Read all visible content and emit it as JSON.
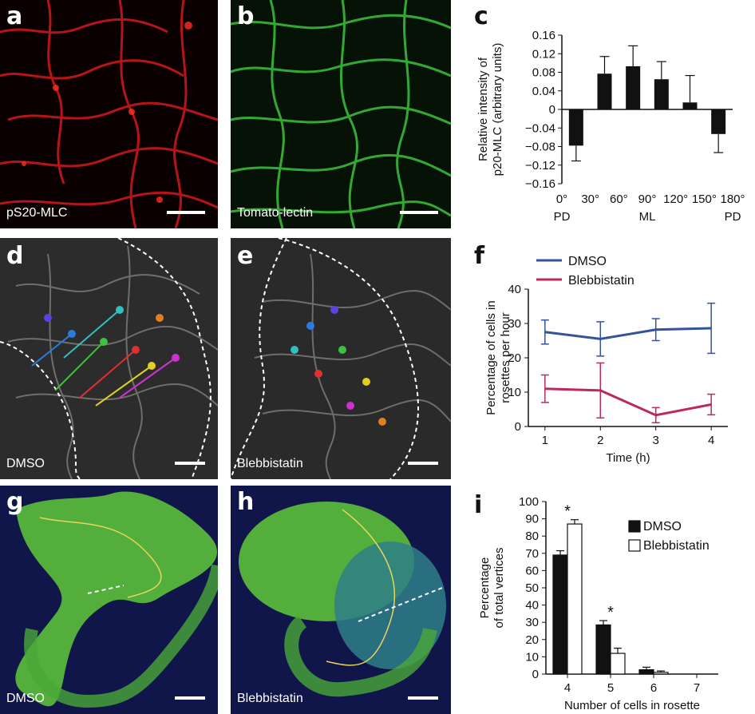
{
  "panels": {
    "a": {
      "label": "a",
      "caption": "pS20-MLC",
      "color": "#e8201c"
    },
    "b": {
      "label": "b",
      "caption": "Tomato-lectin",
      "color": "#36c236"
    },
    "c": {
      "label": "c"
    },
    "d": {
      "label": "d",
      "caption": "DMSO"
    },
    "e": {
      "label": "e",
      "caption": "Blebbistatin"
    },
    "f": {
      "label": "f"
    },
    "g": {
      "label": "g",
      "caption": "DMSO"
    },
    "h": {
      "label": "h",
      "caption": "Blebbistatin"
    },
    "i": {
      "label": "i"
    }
  },
  "chart_data": [
    {
      "id": "c",
      "type": "bar",
      "ylabel_lines": [
        "Relative intensity of",
        "p20-MLC (arbitrary units)"
      ],
      "ylim": [
        -0.16,
        0.16
      ],
      "yticks": [
        "0.16",
        "0.12",
        "0.08",
        "0.04",
        "0",
        "−0.04",
        "−0.08",
        "−0.12",
        "−0.16"
      ],
      "xlim": [
        0,
        180
      ],
      "xticks": [
        "0°",
        "30°",
        "60°",
        "90°",
        "120°",
        "150°",
        "180°"
      ],
      "xtick_values": [
        0,
        30,
        60,
        90,
        120,
        150,
        180
      ],
      "xsublabels": [
        {
          "text": "PD",
          "x": 0
        },
        {
          "text": "ML",
          "x": 90
        },
        {
          "text": "PD",
          "x": 180
        }
      ],
      "bar_centers": [
        15,
        45,
        75,
        105,
        135,
        165
      ],
      "values": [
        -0.078,
        0.077,
        0.093,
        0.065,
        0.015,
        -0.053
      ],
      "errors": [
        0.033,
        0.037,
        0.044,
        0.038,
        0.058,
        0.04
      ],
      "bar_color": "#111111"
    },
    {
      "id": "f",
      "type": "line",
      "ylabel_lines": [
        "Percentage of cells in",
        "rosettes per hour"
      ],
      "xlabel": "Time (h)",
      "ylim": [
        0,
        40
      ],
      "yticks": [
        0,
        10,
        20,
        30,
        40
      ],
      "xlim": [
        0.7,
        4.3
      ],
      "x": [
        1,
        2,
        3,
        4
      ],
      "series": [
        {
          "name": "DMSO",
          "color": "#35539a",
          "values": [
            27.5,
            25.5,
            28.2,
            28.6
          ],
          "errors": [
            3.5,
            5,
            3.2,
            7.3
          ]
        },
        {
          "name": "Blebbistatin",
          "color": "#bb2a5b",
          "values": [
            11.0,
            10.5,
            3.3,
            6.4
          ],
          "errors": [
            4,
            8,
            2.2,
            3
          ]
        }
      ],
      "legend": "top-left"
    },
    {
      "id": "i",
      "type": "bar",
      "ylabel_lines": [
        "Percentage",
        "of total vertices"
      ],
      "xlabel": "Number of cells in rosette",
      "ylim": [
        0,
        100
      ],
      "yticks": [
        0,
        10,
        20,
        30,
        40,
        50,
        60,
        70,
        80,
        90,
        100
      ],
      "categories": [
        "4",
        "5",
        "6",
        "7"
      ],
      "series": [
        {
          "name": "DMSO",
          "fill": "#111111",
          "values": [
            69,
            28.5,
            2.5,
            0
          ],
          "errors": [
            2.5,
            2.5,
            1.5,
            0
          ]
        },
        {
          "name": "Blebbistatin",
          "fill": "#ffffff",
          "values": [
            87,
            12,
            1,
            0
          ],
          "errors": [
            2.5,
            3,
            0.8,
            0
          ]
        }
      ],
      "annotations": [
        {
          "text": "*",
          "category": 0
        },
        {
          "text": "*",
          "category": 1
        }
      ],
      "legend": "top-right"
    }
  ]
}
